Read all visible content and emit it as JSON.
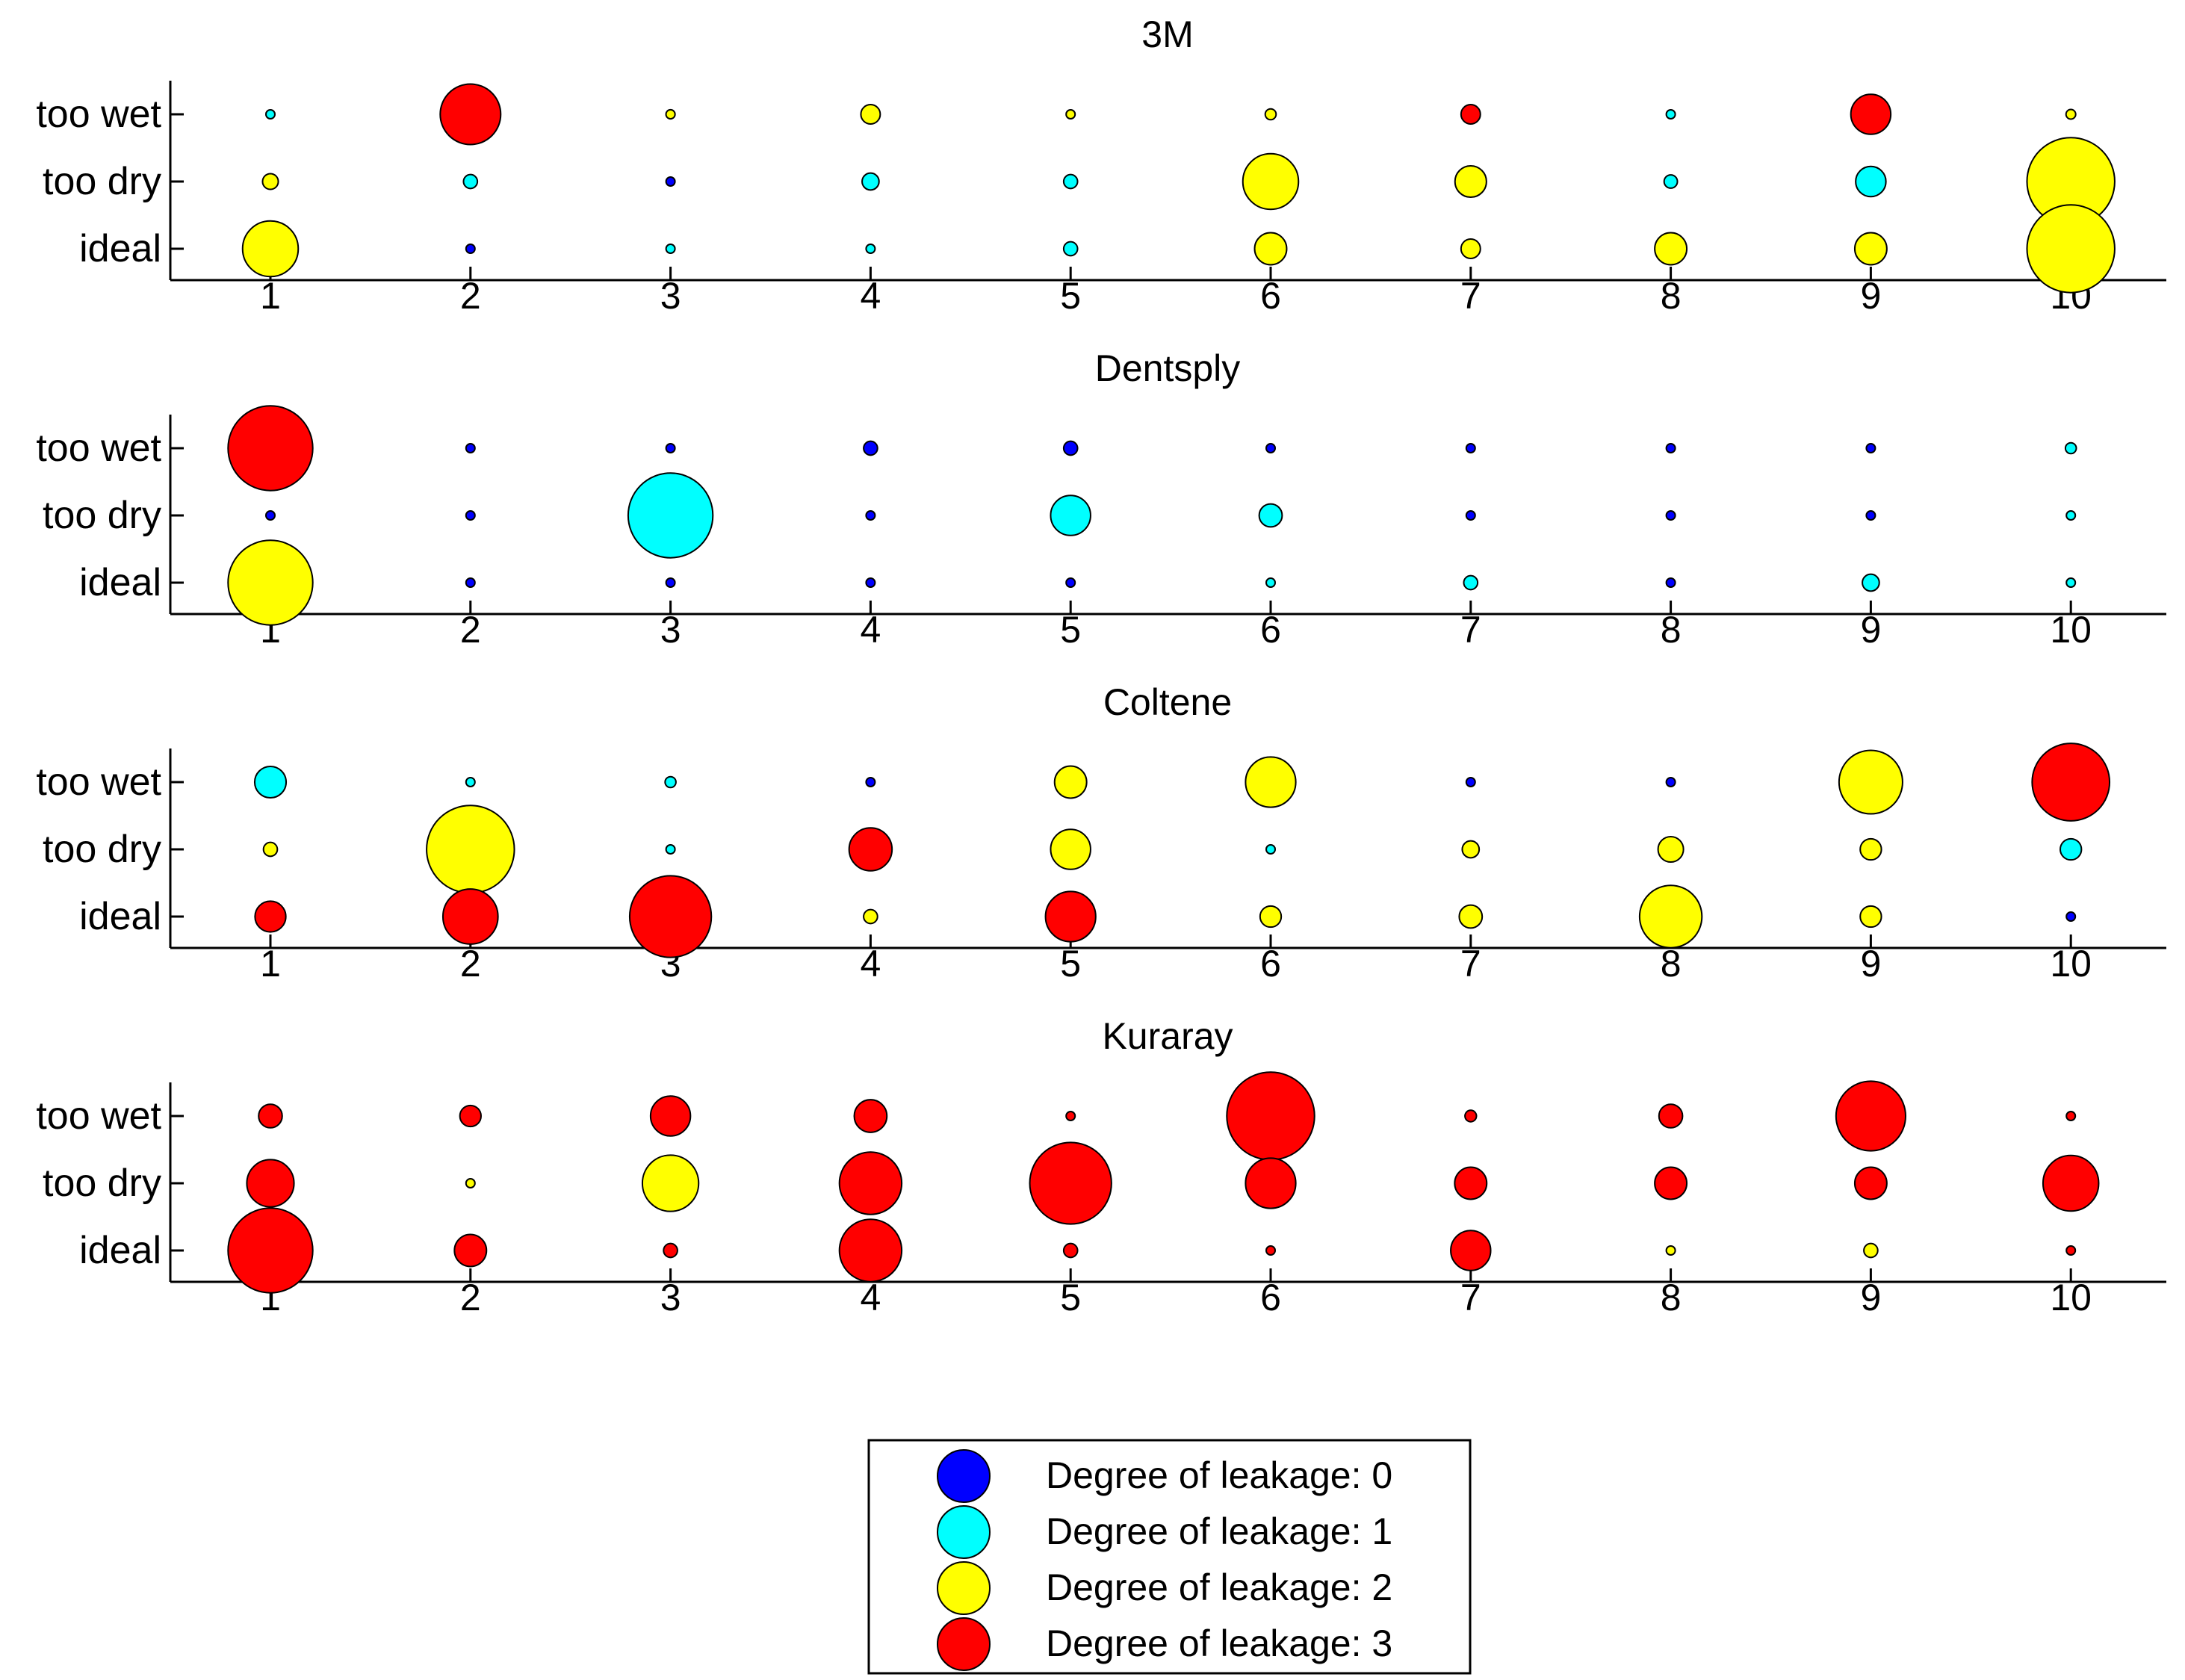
{
  "colors": {
    "0": "#0000ff",
    "1": "#00ffff",
    "2": "#ffff00",
    "3": "#ff0000"
  },
  "chart_data": [
    {
      "type": "scatter",
      "title": "3M",
      "x": [
        1,
        2,
        3,
        4,
        5,
        6,
        7,
        8,
        9,
        10
      ],
      "y_categories": [
        "ideal",
        "too dry",
        "too wet"
      ],
      "points": {
        "too wet": [
          [
            1,
            1,
            1
          ],
          [
            2,
            3,
            10
          ],
          [
            3,
            2,
            1.5
          ],
          [
            4,
            2,
            3.2
          ],
          [
            5,
            2,
            1
          ],
          [
            6,
            2,
            1.8
          ],
          [
            7,
            3,
            3.2
          ],
          [
            8,
            1,
            0.6
          ],
          [
            9,
            3,
            6.6
          ],
          [
            10,
            2,
            1.6
          ]
        ],
        "too dry": [
          [
            1,
            2,
            2.6
          ],
          [
            2,
            1,
            2.3
          ],
          [
            3,
            0,
            0.5
          ],
          [
            4,
            1,
            2.8
          ],
          [
            5,
            1,
            2.3
          ],
          [
            6,
            2,
            9.2
          ],
          [
            7,
            2,
            5.2
          ],
          [
            8,
            1,
            2.2
          ],
          [
            9,
            1,
            5
          ],
          [
            10,
            2,
            14.5
          ]
        ],
        "ideal": [
          [
            1,
            2,
            9.2
          ],
          [
            2,
            0,
            0.5
          ],
          [
            3,
            1,
            0.8
          ],
          [
            4,
            1,
            1.2
          ],
          [
            5,
            1,
            2.3
          ],
          [
            6,
            2,
            5.3
          ],
          [
            7,
            2,
            3.2
          ],
          [
            8,
            2,
            5.3
          ],
          [
            9,
            2,
            5.3
          ],
          [
            10,
            2,
            14.5
          ]
        ]
      }
    },
    {
      "type": "scatter",
      "title": "Dentsply",
      "x": [
        1,
        2,
        3,
        4,
        5,
        6,
        7,
        8,
        9,
        10
      ],
      "y_categories": [
        "ideal",
        "too dry",
        "too wet"
      ],
      "points": {
        "too wet": [
          [
            1,
            3,
            14
          ],
          [
            2,
            0,
            0.5
          ],
          [
            3,
            0,
            0.5
          ],
          [
            4,
            0,
            2.3
          ],
          [
            5,
            0,
            2.3
          ],
          [
            6,
            0,
            0.5
          ],
          [
            7,
            0,
            0.5
          ],
          [
            8,
            0,
            0.5
          ],
          [
            9,
            0,
            0.5
          ],
          [
            10,
            1,
            1.8
          ]
        ],
        "too dry": [
          [
            1,
            0,
            0.5
          ],
          [
            2,
            0,
            0.5
          ],
          [
            3,
            1,
            14
          ],
          [
            4,
            0,
            0.5
          ],
          [
            5,
            1,
            6.6
          ],
          [
            6,
            1,
            3.8
          ],
          [
            7,
            0,
            0.5
          ],
          [
            8,
            0,
            0.5
          ],
          [
            9,
            0,
            0.5
          ],
          [
            10,
            1,
            0.8
          ]
        ],
        "ideal": [
          [
            1,
            2,
            14
          ],
          [
            2,
            0,
            0.5
          ],
          [
            3,
            0,
            0.5
          ],
          [
            4,
            0,
            0.5
          ],
          [
            5,
            0,
            0.5
          ],
          [
            6,
            1,
            1.2
          ],
          [
            7,
            1,
            2.3
          ],
          [
            8,
            0,
            0.5
          ],
          [
            9,
            1,
            2.8
          ],
          [
            10,
            1,
            1.2
          ]
        ]
      }
    },
    {
      "type": "scatter",
      "title": "Coltene",
      "x": [
        1,
        2,
        3,
        4,
        5,
        6,
        7,
        8,
        9,
        10
      ],
      "y_categories": [
        "ideal",
        "too dry",
        "too wet"
      ],
      "points": {
        "too wet": [
          [
            1,
            1,
            5.2
          ],
          [
            2,
            1,
            1
          ],
          [
            3,
            1,
            1.8
          ],
          [
            4,
            0,
            0.5
          ],
          [
            5,
            2,
            5.3
          ],
          [
            6,
            2,
            8.3
          ],
          [
            7,
            0,
            0.5
          ],
          [
            8,
            0,
            0.5
          ],
          [
            9,
            2,
            10.5
          ],
          [
            10,
            3,
            12.8
          ]
        ],
        "too dry": [
          [
            1,
            2,
            2.3
          ],
          [
            2,
            2,
            14.5
          ],
          [
            3,
            1,
            1.2
          ],
          [
            4,
            3,
            7.1
          ],
          [
            5,
            2,
            6.6
          ],
          [
            6,
            1,
            0.5
          ],
          [
            7,
            2,
            2.8
          ],
          [
            8,
            2,
            4.2
          ],
          [
            9,
            2,
            3.5
          ],
          [
            10,
            1,
            3.5
          ]
        ],
        "ideal": [
          [
            1,
            3,
            5.1
          ],
          [
            2,
            3,
            9.1
          ],
          [
            3,
            3,
            13.5
          ],
          [
            4,
            2,
            2.3
          ],
          [
            5,
            3,
            8.3
          ],
          [
            6,
            2,
            3.5
          ],
          [
            7,
            2,
            3.8
          ],
          [
            8,
            2,
            10.3
          ],
          [
            9,
            2,
            3.5
          ],
          [
            10,
            0,
            0.5
          ]
        ]
      }
    },
    {
      "type": "scatter",
      "title": "Kuraray",
      "x": [
        1,
        2,
        3,
        4,
        5,
        6,
        7,
        8,
        9,
        10
      ],
      "y_categories": [
        "ideal",
        "too dry",
        "too wet"
      ],
      "points": {
        "too wet": [
          [
            1,
            3,
            3.9
          ],
          [
            2,
            3,
            3.5
          ],
          [
            3,
            3,
            6.6
          ],
          [
            4,
            3,
            5.4
          ],
          [
            5,
            3,
            0.5
          ],
          [
            6,
            3,
            14.5
          ],
          [
            7,
            3,
            1.9
          ],
          [
            8,
            3,
            3.9
          ],
          [
            9,
            3,
            11.5
          ],
          [
            10,
            3,
            0.8
          ]
        ],
        "too dry": [
          [
            1,
            3,
            7.8
          ],
          [
            2,
            2,
            0.5
          ],
          [
            3,
            2,
            9.3
          ],
          [
            4,
            3,
            10.3
          ],
          [
            5,
            3,
            13.5
          ],
          [
            6,
            3,
            8.3
          ],
          [
            7,
            3,
            5.3
          ],
          [
            8,
            3,
            5.3
          ],
          [
            9,
            3,
            5.3
          ],
          [
            10,
            3,
            9.2
          ]
        ],
        "ideal": [
          [
            1,
            3,
            14
          ],
          [
            2,
            3,
            5.3
          ],
          [
            3,
            3,
            2.3
          ],
          [
            4,
            3,
            10.3
          ],
          [
            5,
            3,
            2.3
          ],
          [
            6,
            3,
            0.8
          ],
          [
            7,
            3,
            6.6
          ],
          [
            8,
            2,
            0.5
          ],
          [
            9,
            2,
            2.3
          ],
          [
            10,
            3,
            1
          ]
        ]
      }
    }
  ],
  "legend": {
    "placement": "bottom-center",
    "entries": [
      {
        "label": "Degree of leakage: 0",
        "level": 0
      },
      {
        "label": "Degree of leakage: 1",
        "level": 1
      },
      {
        "label": "Degree of leakage: 2",
        "level": 2
      },
      {
        "label": "Degree of leakage: 3",
        "level": 3
      }
    ]
  }
}
